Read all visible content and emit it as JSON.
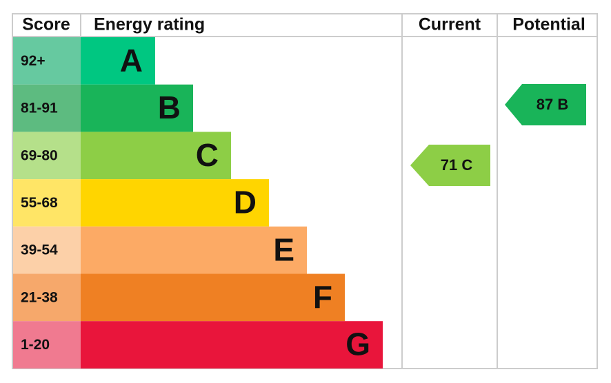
{
  "header": {
    "score": "Score",
    "rating": "Energy rating",
    "current": "Current",
    "potential": "Potential"
  },
  "bands": [
    {
      "score": "92+",
      "letter": "A"
    },
    {
      "score": "81-91",
      "letter": "B"
    },
    {
      "score": "69-80",
      "letter": "C"
    },
    {
      "score": "55-68",
      "letter": "D"
    },
    {
      "score": "39-54",
      "letter": "E"
    },
    {
      "score": "21-38",
      "letter": "F"
    },
    {
      "score": "1-20",
      "letter": "G"
    }
  ],
  "current": "71 C",
  "potential": "87 B"
}
